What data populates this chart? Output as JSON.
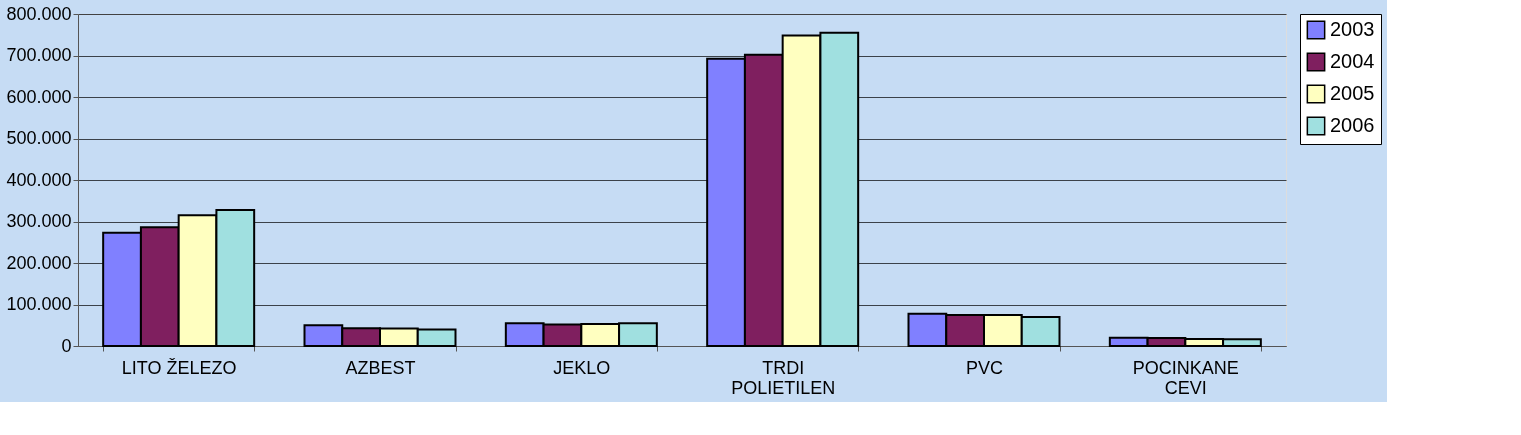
{
  "chart_data": {
    "type": "bar",
    "categories": [
      "LITO ŽELEZO",
      "AZBEST",
      "JEKLO",
      "TRDI POLIETILEN",
      "PVC",
      "POCINKANE CEVI"
    ],
    "series": [
      {
        "name": "2003",
        "color": "#8080ff",
        "values": [
          273000,
          50000,
          55000,
          692000,
          78000,
          20000
        ]
      },
      {
        "name": "2004",
        "color": "#7f1f5f",
        "values": [
          286000,
          43000,
          52000,
          702000,
          75000,
          19000
        ]
      },
      {
        "name": "2005",
        "color": "#ffffc0",
        "values": [
          315000,
          42000,
          53000,
          748000,
          75000,
          17000
        ]
      },
      {
        "name": "2006",
        "color": "#a0e0e0",
        "values": [
          328000,
          40000,
          55000,
          755000,
          70000,
          16000
        ]
      }
    ],
    "ylim": [
      0,
      800000
    ],
    "yticks": [
      0,
      {
        "value": 100000,
        "label": "100.000"
      },
      {
        "value": 200000,
        "label": "200.000"
      },
      {
        "value": 300000,
        "label": "300.000"
      },
      {
        "value": 400000,
        "label": "400.000"
      },
      {
        "value": 500000,
        "label": "500.000"
      },
      {
        "value": 600000,
        "label": "600.000"
      },
      {
        "value": 700000,
        "label": "700.000"
      },
      {
        "value": 800000,
        "label": "800.000"
      }
    ],
    "grid": "y",
    "legend": "right"
  }
}
